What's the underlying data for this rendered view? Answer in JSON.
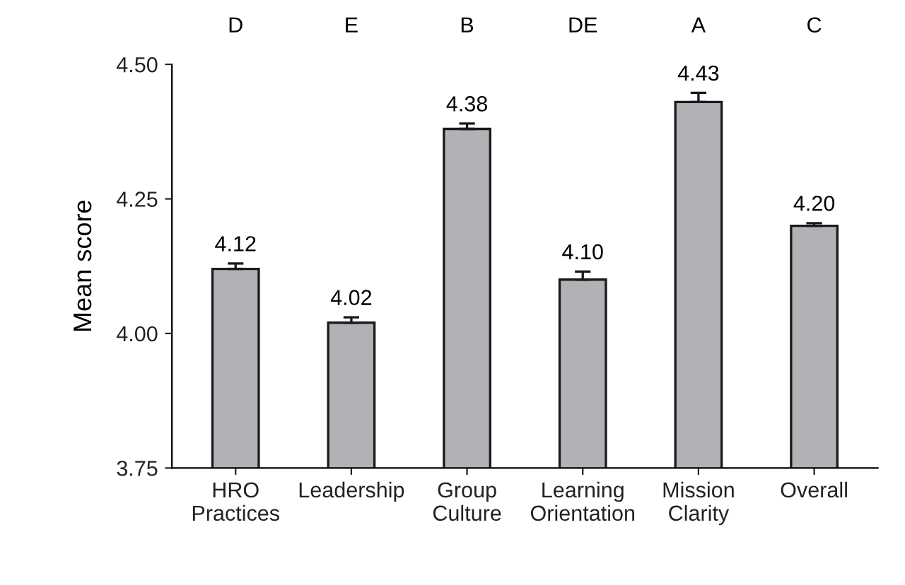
{
  "chart_data": {
    "type": "bar",
    "ylabel": "Mean score",
    "categories": [
      "HRO\nPractices",
      "Leadership",
      "Group\nCulture",
      "Learning\nOrientation",
      "Mission\nClarity",
      "Overall"
    ],
    "values": [
      4.12,
      4.02,
      4.38,
      4.1,
      4.43,
      4.2
    ],
    "errors": [
      [
        4.12,
        4.13
      ],
      [
        4.02,
        4.03
      ],
      [
        4.38,
        4.39
      ],
      [
        4.1,
        4.115
      ],
      [
        4.43,
        4.447
      ],
      [
        4.2,
        4.205
      ]
    ],
    "color": "#b1b2b6",
    "value_labels": [
      "4.12",
      "4.02",
      "4.38",
      "4.10",
      "4.43",
      "4.20"
    ],
    "annotations": [
      "D",
      "E",
      "B",
      "DE",
      "A",
      "C"
    ],
    "ylim": [
      3.75,
      4.5
    ],
    "yticks": [
      3.75,
      {
        "value": 4.0,
        "label": "4.00"
      },
      4.25,
      {
        "value": 4.5,
        "label": "4.50"
      }
    ],
    "grid": false,
    "legend": false
  }
}
